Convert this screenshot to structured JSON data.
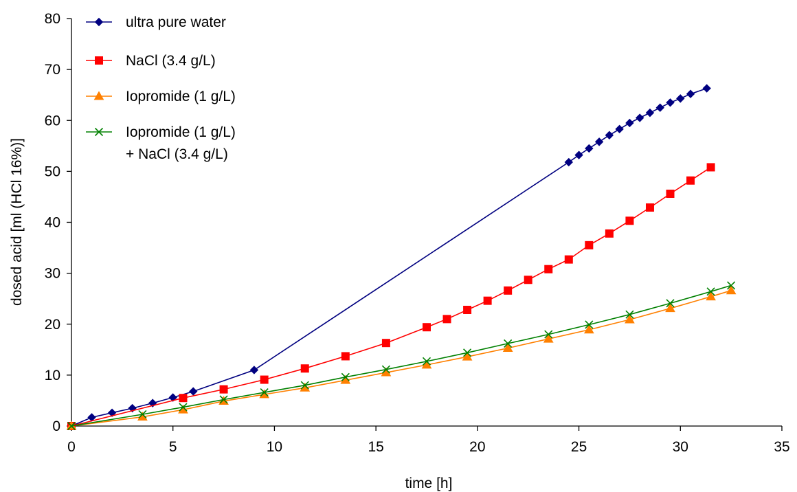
{
  "chart_data": {
    "type": "line",
    "title": "",
    "xlabel": "time [h]",
    "ylabel": "dosed acid [ml (HCl 16%)]",
    "xlim": [
      0,
      35
    ],
    "ylim": [
      0,
      80
    ],
    "xticks": [
      "0",
      "5",
      "10",
      "15",
      "20",
      "25",
      "30",
      "35"
    ],
    "yticks": [
      "0",
      "10",
      "20",
      "30",
      "40",
      "50",
      "60",
      "70",
      "80"
    ],
    "grid": false,
    "legend_position": "top-left",
    "series": [
      {
        "name": "ultra pure water",
        "color": "#000080",
        "marker": "diamond",
        "x": [
          0,
          1,
          2,
          3,
          4,
          5,
          6,
          9,
          24.5,
          25,
          25.5,
          26,
          26.5,
          27,
          27.5,
          28,
          28.5,
          29,
          29.5,
          30,
          30.5,
          31.3
        ],
        "y": [
          0,
          1.7,
          2.6,
          3.5,
          4.5,
          5.6,
          6.8,
          11,
          51.8,
          53.2,
          54.5,
          55.8,
          57.1,
          58.3,
          59.5,
          60.5,
          61.5,
          62.5,
          63.5,
          64.3,
          65.2,
          66.3
        ]
      },
      {
        "name": "NaCl (3.4 g/L)",
        "color": "#ff0000",
        "marker": "square",
        "x": [
          0,
          5.5,
          7.5,
          9.5,
          11.5,
          13.5,
          15.5,
          17.5,
          18.5,
          19.5,
          20.5,
          21.5,
          22.5,
          23.5,
          24.5,
          25.5,
          26.5,
          27.5,
          28.5,
          29.5,
          30.5,
          31.5
        ],
        "y": [
          0,
          5.5,
          7.2,
          9.1,
          11.3,
          13.7,
          16.3,
          19.4,
          21,
          22.8,
          24.6,
          26.6,
          28.7,
          30.8,
          32.7,
          35.5,
          37.8,
          40.3,
          42.9,
          45.6,
          48.2,
          50.8
        ]
      },
      {
        "name": "Iopromide (1 g/L)",
        "color": "#ff8000",
        "marker": "triangle",
        "x": [
          0,
          3.5,
          5.5,
          7.5,
          9.5,
          11.5,
          13.5,
          15.5,
          17.5,
          19.5,
          21.5,
          23.5,
          25.5,
          27.5,
          29.5,
          31.5,
          32.5
        ],
        "y": [
          0,
          1.8,
          3.2,
          4.9,
          6.2,
          7.5,
          9,
          10.5,
          12,
          13.6,
          15.3,
          17.1,
          18.9,
          20.9,
          23.1,
          25.4,
          26.6
        ]
      },
      {
        "name": "Iopromide (1 g/L)",
        "name_line2": "+ NaCl (3.4 g/L)",
        "color": "#008000",
        "marker": "x",
        "x": [
          0,
          3.5,
          5.5,
          7.5,
          9.5,
          11.5,
          13.5,
          15.5,
          17.5,
          19.5,
          21.5,
          23.5,
          25.5,
          27.5,
          29.5,
          31.5,
          32.5
        ],
        "y": [
          0,
          2.3,
          3.7,
          5.2,
          6.6,
          8,
          9.6,
          11.1,
          12.7,
          14.4,
          16.2,
          18,
          19.9,
          21.9,
          24.1,
          26.4,
          27.6
        ]
      }
    ]
  }
}
